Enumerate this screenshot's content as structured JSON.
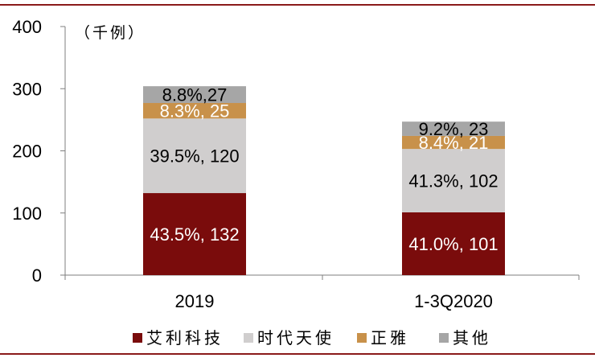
{
  "chart_data": {
    "type": "bar",
    "stacked": true,
    "unit_label": "（千例）",
    "categories": [
      "2019",
      "1-3Q2020"
    ],
    "series": [
      {
        "name": "艾利科技",
        "color": "#7a0c0c",
        "label_color": "#ffffff",
        "values": [
          132,
          101
        ],
        "labels": [
          "43.5%, 132",
          "41.0%, 101"
        ]
      },
      {
        "name": "时代天使",
        "color": "#d0cece",
        "label_color": "#000000",
        "values": [
          120,
          102
        ],
        "labels": [
          "39.5%, 120",
          "41.3%, 102"
        ]
      },
      {
        "name": "正雅",
        "color": "#c8914a",
        "label_color": "#ffffff",
        "values": [
          25,
          21
        ],
        "labels": [
          "8.3%, 25",
          "8.4%, 21"
        ]
      },
      {
        "name": "其他",
        "color": "#a6a6a6",
        "label_color": "#000000",
        "values": [
          27,
          23
        ],
        "labels": [
          "8.8%,27",
          "9.2%, 23"
        ]
      }
    ],
    "ylim": [
      0,
      400
    ],
    "yticks": [
      0,
      100,
      200,
      300,
      400
    ],
    "grid": false,
    "legend_position": "bottom"
  }
}
